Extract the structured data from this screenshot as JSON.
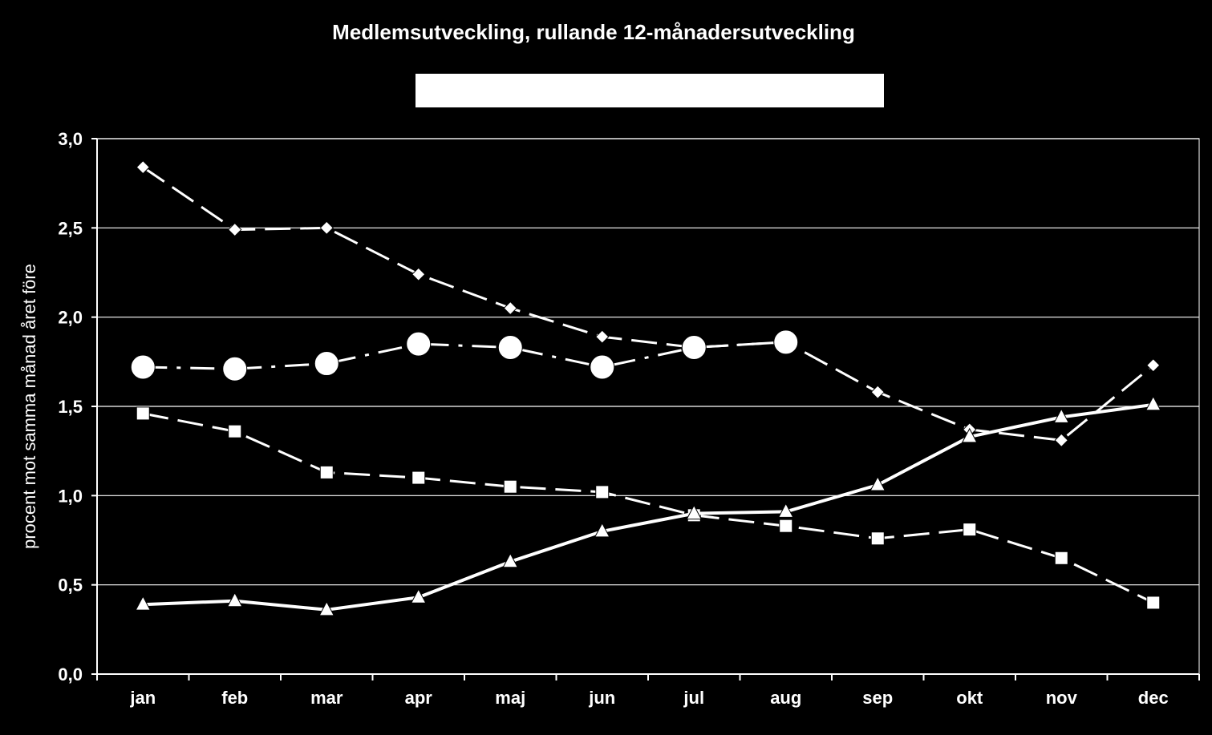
{
  "chart_data": {
    "type": "line",
    "title": "Medlemsutveckling, rullande 12-månadersutveckling",
    "xlabel": "",
    "ylabel": "procent mot samma månad året före",
    "categories": [
      "jan",
      "feb",
      "mar",
      "apr",
      "maj",
      "jun",
      "jul",
      "aug",
      "sep",
      "okt",
      "nov",
      "dec"
    ],
    "ylim": [
      0,
      3
    ],
    "yticks": [
      0,
      0.5,
      1,
      1.5,
      2,
      2.5,
      3
    ],
    "ytick_labels": [
      "0,0",
      "0,5",
      "1,0",
      "1,5",
      "2,0",
      "2,5",
      "3,0"
    ],
    "grid": true,
    "legend": "hidden",
    "series": [
      {
        "marker": "diamond",
        "line": "dashed",
        "values": [
          2.84,
          2.49,
          2.5,
          2.24,
          2.05,
          1.89,
          1.83,
          1.86,
          1.58,
          1.37,
          1.31,
          1.73
        ]
      },
      {
        "marker": "circle",
        "line": "dash-dot",
        "values": [
          1.72,
          1.71,
          1.74,
          1.85,
          1.83,
          1.72,
          1.83,
          1.86,
          null,
          null,
          null,
          null
        ]
      },
      {
        "marker": "square",
        "line": "dashed",
        "values": [
          1.46,
          1.36,
          1.13,
          1.1,
          1.05,
          1.02,
          0.89,
          0.83,
          0.76,
          0.81,
          0.65,
          0.4
        ]
      },
      {
        "marker": "triangle",
        "line": "solid",
        "values": [
          0.39,
          0.41,
          0.36,
          0.43,
          0.63,
          0.8,
          0.9,
          0.91,
          1.06,
          1.33,
          1.44,
          1.51
        ]
      }
    ],
    "colors": {
      "background": "#000000",
      "foreground": "#ffffff",
      "legend_box": "#ffffff"
    }
  }
}
